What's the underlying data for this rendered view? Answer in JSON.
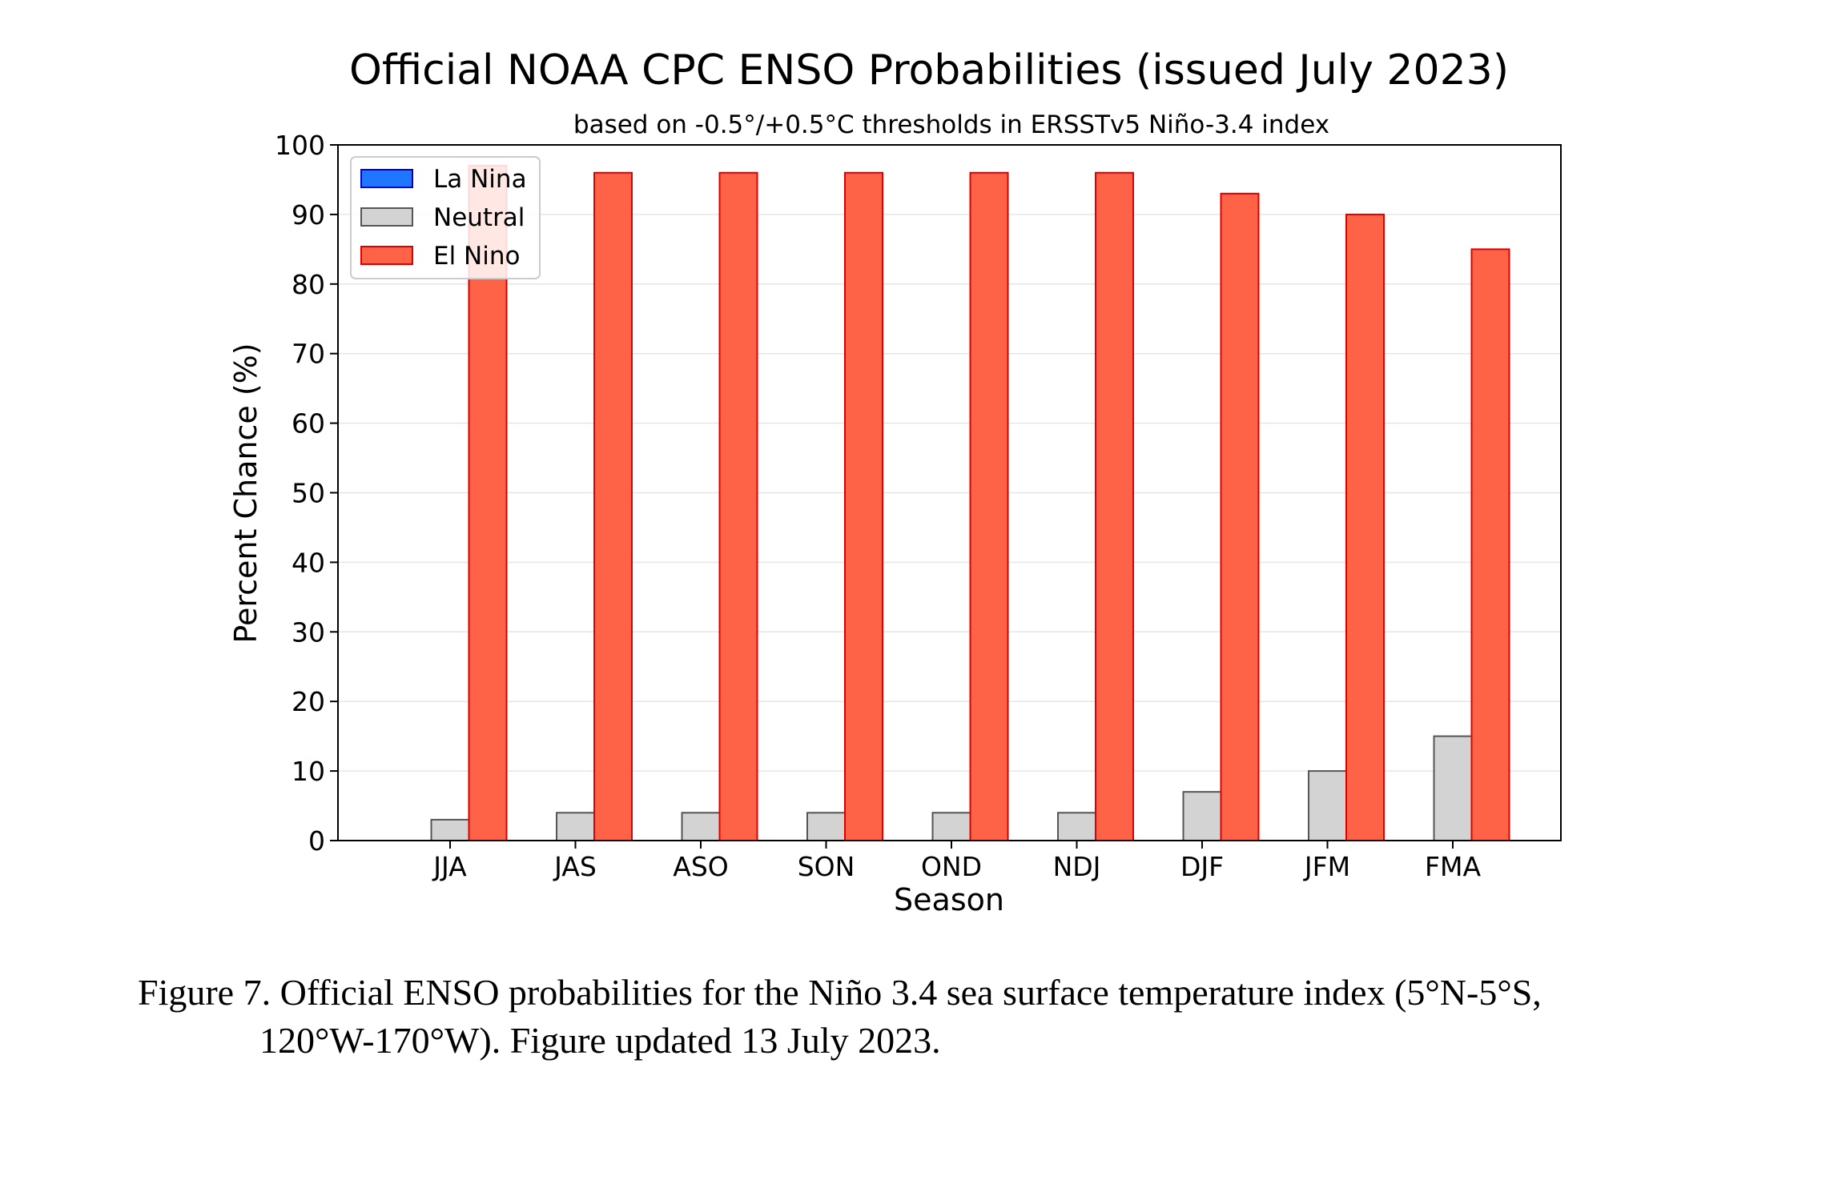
{
  "chart_data": {
    "type": "bar",
    "title": "Official NOAA CPC ENSO Probabilities (issued July 2023)",
    "subtitle": "based on -0.5°/+0.5°C thresholds in ERSSTv5 Niño-3.4 index",
    "xlabel": "Season",
    "ylabel": "Percent Chance (%)",
    "ylim": [
      0,
      100
    ],
    "yticks": [
      0,
      10,
      20,
      30,
      40,
      50,
      60,
      70,
      80,
      90,
      100
    ],
    "grid": true,
    "legend_position": "top-left",
    "categories": [
      "JJA",
      "JAS",
      "ASO",
      "SON",
      "OND",
      "NDJ",
      "DJF",
      "JFM",
      "FMA"
    ],
    "series": [
      {
        "name": "La Nina",
        "color": "#1f77ff",
        "edge": "#0000cc",
        "values": [
          0,
          0,
          0,
          0,
          0,
          0,
          0,
          0,
          0
        ]
      },
      {
        "name": "Neutral",
        "color": "#d3d3d3",
        "edge": "#555555",
        "values": [
          3,
          4,
          4,
          4,
          4,
          4,
          7,
          10,
          15
        ]
      },
      {
        "name": "El Nino",
        "color": "#ff6347",
        "edge": "#dd0000",
        "values": [
          97,
          96,
          96,
          96,
          96,
          96,
          93,
          90,
          85
        ]
      }
    ]
  },
  "caption": {
    "line1": "Figure 7. Official ENSO probabilities for the Niño 3.4 sea surface temperature index (5°N-5°S,",
    "line2": "120°W-170°W). Figure updated 13 July 2023."
  }
}
